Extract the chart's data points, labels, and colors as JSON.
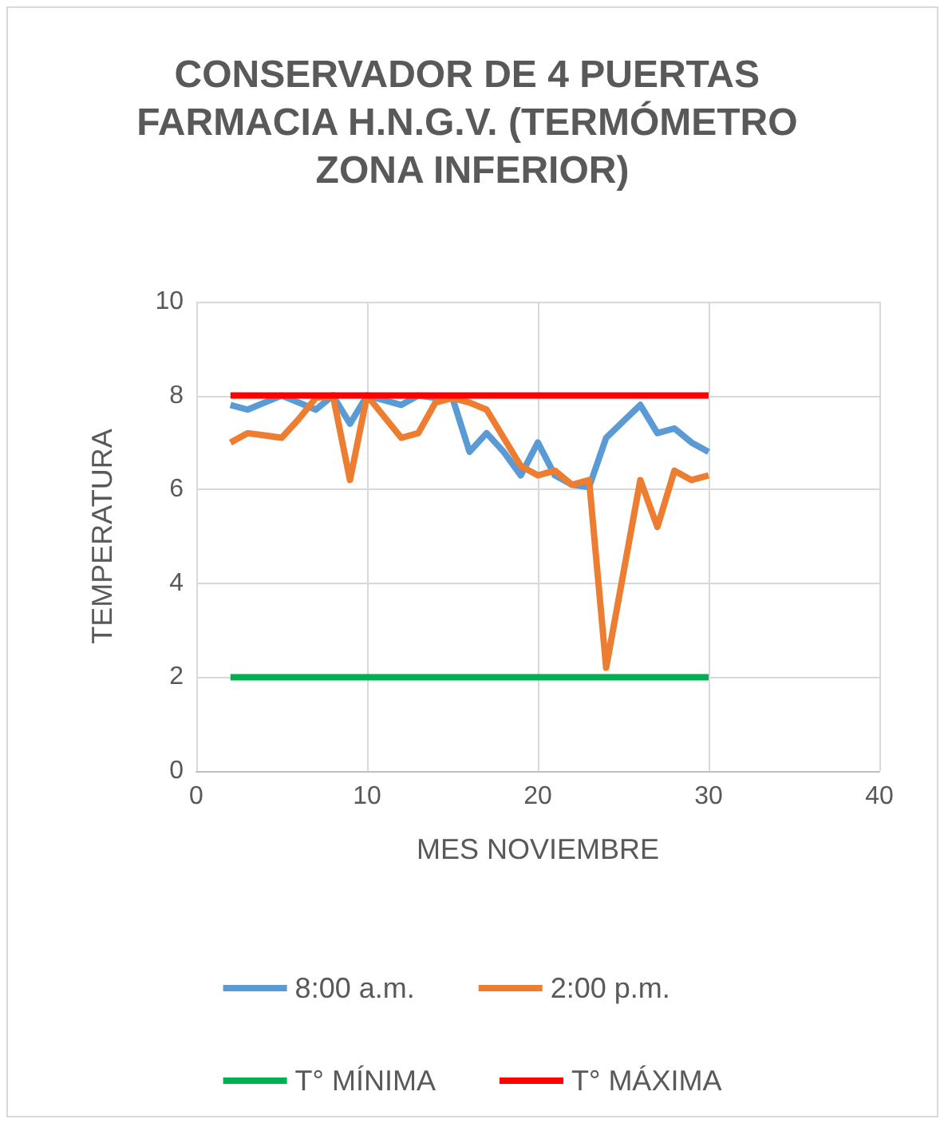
{
  "chart_data": {
    "type": "line",
    "title": "CONSERVADOR DE 4 PUERTAS FARMACIA H.N.G.V. (TERMÓMETRO ZONA INFERIOR)",
    "xlabel": "MES NOVIEMBRE",
    "ylabel": "TEMPERATURA",
    "x": [
      2,
      3,
      4,
      5,
      6,
      7,
      8,
      9,
      10,
      11,
      12,
      13,
      14,
      15,
      16,
      17,
      18,
      19,
      20,
      21,
      22,
      23,
      24,
      25,
      26,
      27,
      28,
      29,
      30
    ],
    "series": [
      {
        "name": "8:00 a.m.",
        "color": "#5b9bd5",
        "values": [
          7.8,
          7.7,
          7.85,
          8.0,
          7.85,
          7.7,
          8.0,
          7.4,
          8.0,
          7.9,
          7.8,
          8.0,
          7.95,
          7.95,
          6.8,
          7.2,
          6.8,
          6.3,
          7.0,
          6.3,
          6.1,
          6.05,
          7.1,
          7.45,
          7.8,
          7.2,
          7.3,
          7.0,
          6.8
        ]
      },
      {
        "name": "2:00 p.m.",
        "color": "#ed7d31",
        "values": [
          7.0,
          7.2,
          7.15,
          7.1,
          7.5,
          7.95,
          8.0,
          6.2,
          8.0,
          7.55,
          7.1,
          7.2,
          7.85,
          7.95,
          7.85,
          7.7,
          7.1,
          6.5,
          6.3,
          6.4,
          6.1,
          6.2,
          2.2,
          4.2,
          6.2,
          5.2,
          6.4,
          6.2,
          6.3
        ]
      },
      {
        "name": "T° MÍNIMA",
        "color": "#00b050",
        "values": [
          2,
          2,
          2,
          2,
          2,
          2,
          2,
          2,
          2,
          2,
          2,
          2,
          2,
          2,
          2,
          2,
          2,
          2,
          2,
          2,
          2,
          2,
          2,
          2,
          2,
          2,
          2,
          2,
          2
        ]
      },
      {
        "name": "T° MÁXIMA",
        "color": "#ff0000",
        "values": [
          8,
          8,
          8,
          8,
          8,
          8,
          8,
          8,
          8,
          8,
          8,
          8,
          8,
          8,
          8,
          8,
          8,
          8,
          8,
          8,
          8,
          8,
          8,
          8,
          8,
          8,
          8,
          8,
          8
        ]
      }
    ],
    "xlim": [
      0,
      40
    ],
    "xticks": [
      0,
      10,
      20,
      30,
      40
    ],
    "ylim": [
      0,
      10
    ],
    "yticks": [
      0,
      2,
      4,
      6,
      8,
      10
    ],
    "grid": true,
    "legend": "bottom",
    "marker": "none",
    "line_style": "solid"
  }
}
